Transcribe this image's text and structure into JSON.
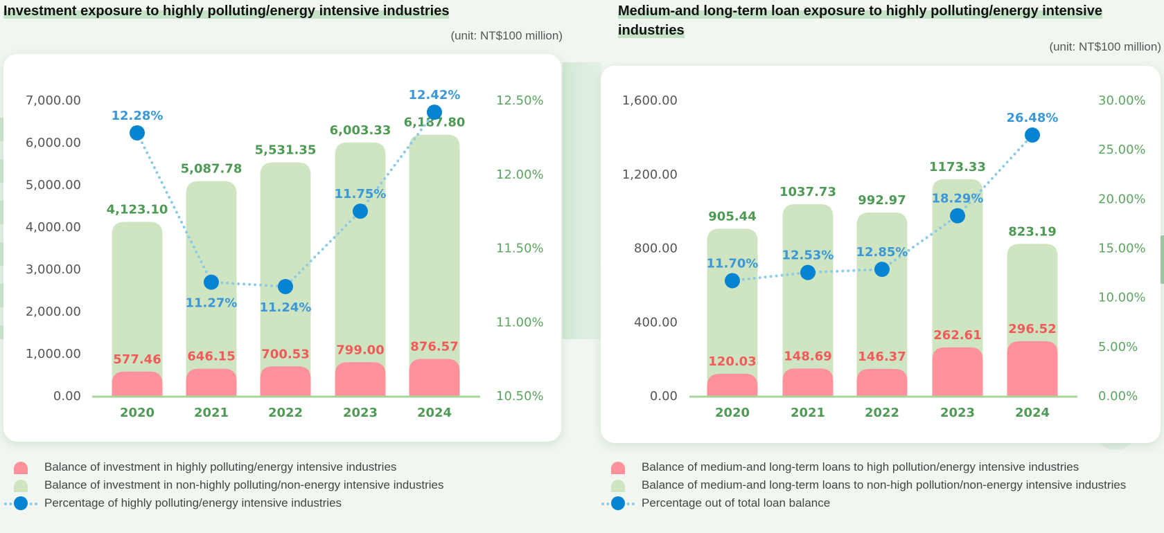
{
  "left": {
    "title": "Investment exposure to highly polluting/energy intensive industries",
    "unit": "(unit: NT$100 million)",
    "legend": [
      {
        "label": "Balance of investment in highly polluting/energy intensive industries",
        "type": "bar",
        "color": "#fe9199"
      },
      {
        "label": "Balance of investment in non-highly polluting/non-energy intensive industries",
        "type": "bar",
        "color": "#cfe5c1"
      },
      {
        "label": "Percentage of highly polluting/energy intensive industries",
        "type": "line",
        "color": "#0683d1"
      }
    ]
  },
  "right": {
    "title": "Medium-and long-term loan exposure to highly polluting/energy intensive industries",
    "unit": "(unit: NT$100 million)",
    "legend": [
      {
        "label": "Balance of medium-and long-term loans to high pollution/energy intensive industries",
        "type": "bar",
        "color": "#fe9199"
      },
      {
        "label": "Balance of medium-and long-term loans to non-high pollution/non-energy intensive industries",
        "type": "bar",
        "color": "#cfe5c1"
      },
      {
        "label": "Percentage out of total loan balance",
        "type": "line",
        "color": "#0683d1"
      }
    ]
  },
  "colors": {
    "high_bar": "#fe9199",
    "non_bar": "#cfe5c1",
    "line": "#8ccbe8",
    "dot": "#0683d1",
    "label_green": "#4e9a55",
    "label_red": "#f05a5a",
    "label_blue": "#3a97d8",
    "axis": "#a8d39a"
  },
  "chart_data": [
    {
      "type": "bar",
      "title": "Investment exposure to highly polluting/energy intensive industries",
      "unit": "NT$100 million",
      "categories": [
        "2020",
        "2021",
        "2022",
        "2023",
        "2024"
      ],
      "series": [
        {
          "name": "Balance of investment in highly polluting/energy intensive industries",
          "kind": "bar",
          "values": [
            577.46,
            646.15,
            700.53,
            799.0,
            876.57
          ],
          "labels": [
            "577.46",
            "646.15",
            "700.53",
            "799.00",
            "876.57"
          ]
        },
        {
          "name": "Balance of investment in non-highly polluting/non-energy intensive industries",
          "kind": "bar",
          "values": [
            4123.1,
            5087.78,
            5531.35,
            6003.33,
            6187.8
          ],
          "labels": [
            "4,123.10",
            "5,087.78",
            "5,531.35",
            "6,003.33",
            "6,187.80"
          ]
        },
        {
          "name": "Percentage of highly polluting/energy intensive industries",
          "kind": "line",
          "axis": "right",
          "values": [
            12.28,
            11.27,
            11.24,
            11.75,
            12.42
          ],
          "labels": [
            "12.28%",
            "11.27%",
            "11.24%",
            "11.75%",
            "12.42%"
          ]
        }
      ],
      "ylim": [
        0,
        7000
      ],
      "yticks": [
        "0.00",
        "1,000.00",
        "2,000.00",
        "3,000.00",
        "4,000.00",
        "5,000.00",
        "6,000.00",
        "7,000.00"
      ],
      "y2lim": [
        10.5,
        12.5
      ],
      "y2ticks": [
        "10.50%",
        "11.00%",
        "11.50%",
        "12.00%",
        "12.50%"
      ],
      "grid": false,
      "legend_position": "bottom"
    },
    {
      "type": "bar",
      "title": "Medium-and long-term loan exposure to highly polluting/energy intensive industries",
      "unit": "NT$100 million",
      "categories": [
        "2020",
        "2021",
        "2022",
        "2023",
        "2024"
      ],
      "series": [
        {
          "name": "Balance of medium-and long-term loans to high pollution/energy intensive industries",
          "kind": "bar",
          "values": [
            120.03,
            148.69,
            146.37,
            262.61,
            296.52
          ],
          "labels": [
            "120.03",
            "148.69",
            "146.37",
            "262.61",
            "296.52"
          ]
        },
        {
          "name": "Balance of medium-and long-term loans to non-high pollution/non-energy intensive industries",
          "kind": "bar",
          "values": [
            905.44,
            1037.73,
            992.97,
            1173.33,
            823.19
          ],
          "labels": [
            "905.44",
            "1037.73",
            "992.97",
            "1173.33",
            "823.19"
          ]
        },
        {
          "name": "Percentage out of total loan balance",
          "kind": "line",
          "axis": "right",
          "values": [
            11.7,
            12.53,
            12.85,
            18.29,
            26.48
          ],
          "labels": [
            "11.70%",
            "12.53%",
            "12.85%",
            "18.29%",
            "26.48%"
          ]
        }
      ],
      "ylim": [
        0,
        1600
      ],
      "yticks": [
        "0.00",
        "400.00",
        "800.00",
        "1,200.00",
        "1,600.00"
      ],
      "y2lim": [
        0,
        30
      ],
      "y2ticks": [
        "0.00%",
        "5.00%",
        "10.00%",
        "15.00%",
        "20.00%",
        "25.00%",
        "30.00%"
      ],
      "grid": false,
      "legend_position": "bottom"
    }
  ]
}
